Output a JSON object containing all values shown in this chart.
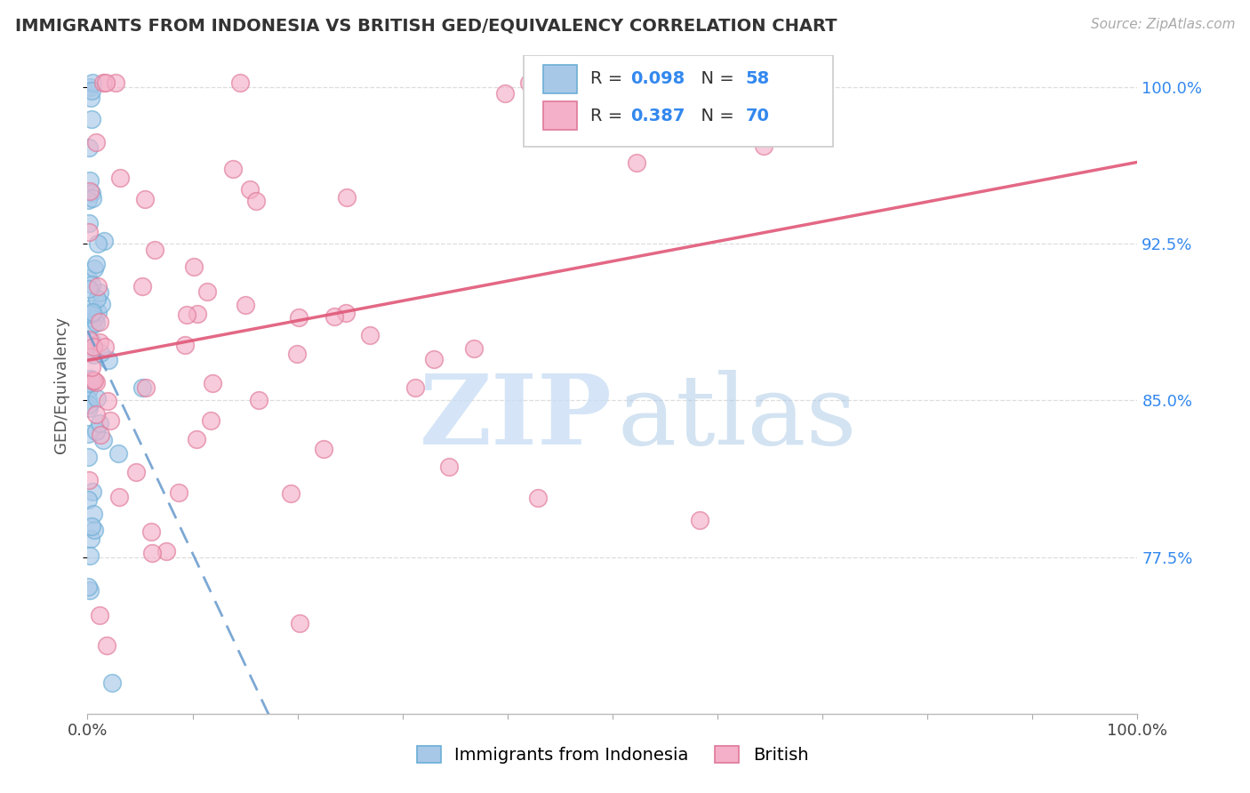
{
  "title": "IMMIGRANTS FROM INDONESIA VS BRITISH GED/EQUIVALENCY CORRELATION CHART",
  "source": "Source: ZipAtlas.com",
  "ylabel": "GED/Equivalency",
  "ytick_labels": [
    "100.0%",
    "92.5%",
    "85.0%",
    "77.5%"
  ],
  "ytick_values": [
    1.0,
    0.925,
    0.85,
    0.775
  ],
  "xtick_left": "0.0%",
  "xtick_right": "100.0%",
  "legend_label_1": "Immigrants from Indonesia",
  "legend_label_2": "British",
  "R1": 0.098,
  "N1": 58,
  "R2": 0.387,
  "N2": 70,
  "indonesia_fill": "#a8c8e8",
  "indonesia_edge": "#6baed6",
  "british_fill": "#f4b0c8",
  "british_edge": "#e07898",
  "indonesia_line_color": "#6699cc",
  "british_line_color": "#e05878",
  "xlim_min": 0.0,
  "xlim_max": 1.0,
  "ylim_min": 0.7,
  "ylim_max": 1.015,
  "title_fontsize": 14,
  "source_fontsize": 11,
  "tick_fontsize": 13,
  "legend_fontsize": 14,
  "ylabel_fontsize": 13,
  "right_tick_color": "#3388ee",
  "grid_color": "#dddddd",
  "watermark_zip_color": "#c8ddf5",
  "watermark_atlas_color": "#b0cce8"
}
